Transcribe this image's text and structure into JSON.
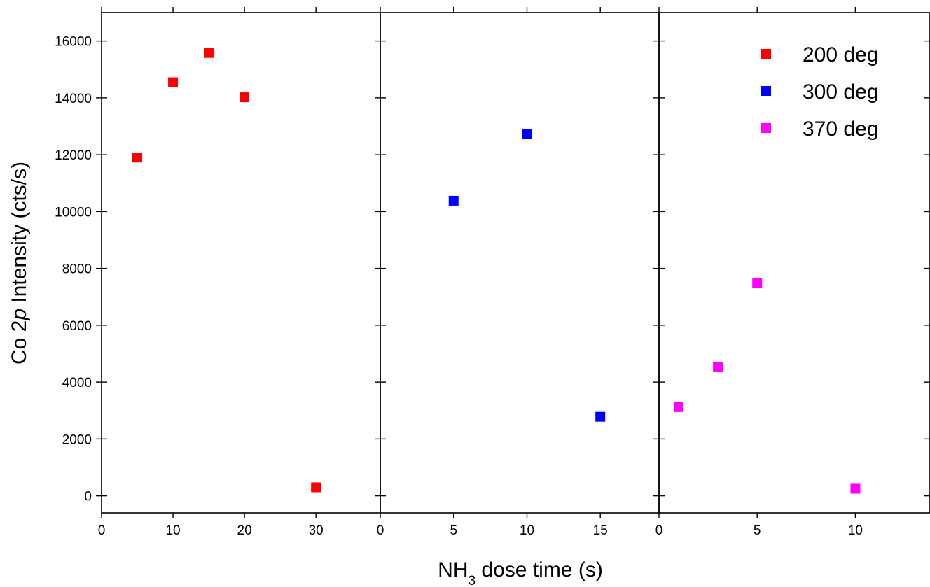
{
  "chart_data": {
    "type": "scatter",
    "ylabel_parts": [
      "Co 2",
      "p",
      " Intensity (cts/s)"
    ],
    "xlabel_parts": [
      "NH",
      "3",
      " dose time (s)"
    ],
    "ylim": [
      -600,
      17000
    ],
    "yticks": [
      0,
      2000,
      4000,
      6000,
      8000,
      10000,
      12000,
      14000,
      16000
    ],
    "yticklabels": [
      "0",
      "2000",
      "4000",
      "6000",
      "8000",
      "10000",
      "12000",
      "14000",
      "16000"
    ],
    "panels": [
      {
        "xlim": [
          0,
          39
        ],
        "xticks": [
          0,
          10,
          20,
          30
        ],
        "xticklabels": [
          "0",
          "10",
          "20",
          "30"
        ],
        "series": [
          {
            "name": "200 deg",
            "color": "#ff0000",
            "x": [
              5,
              10,
              15,
              20,
              30
            ],
            "y": [
              11900,
              14550,
              15580,
              14020,
              300
            ]
          }
        ]
      },
      {
        "xlim": [
          0,
          19
        ],
        "xticks": [
          0,
          5,
          10,
          15
        ],
        "xticklabels": [
          "0",
          "5",
          "10",
          "15"
        ],
        "series": [
          {
            "name": "300 deg",
            "color": "#0000ff",
            "x": [
              5,
              10,
              15
            ],
            "y": [
              10380,
              12740,
              2780
            ]
          }
        ]
      },
      {
        "xlim": [
          0,
          13.8
        ],
        "xticks": [
          0,
          5,
          10
        ],
        "xticklabels": [
          "0",
          "5",
          "10"
        ],
        "series": [
          {
            "name": "370 deg",
            "color": "#ff00ff",
            "x": [
              1,
              3,
              5,
              10
            ],
            "y": [
              3120,
              4520,
              7480,
              250
            ]
          }
        ]
      }
    ],
    "legend": {
      "placement": "top-right",
      "entries": [
        {
          "label": "200 deg",
          "color": "#ff0000"
        },
        {
          "label": "300 deg",
          "color": "#0000ff"
        },
        {
          "label": "370 deg",
          "color": "#ff00ff"
        }
      ]
    }
  }
}
